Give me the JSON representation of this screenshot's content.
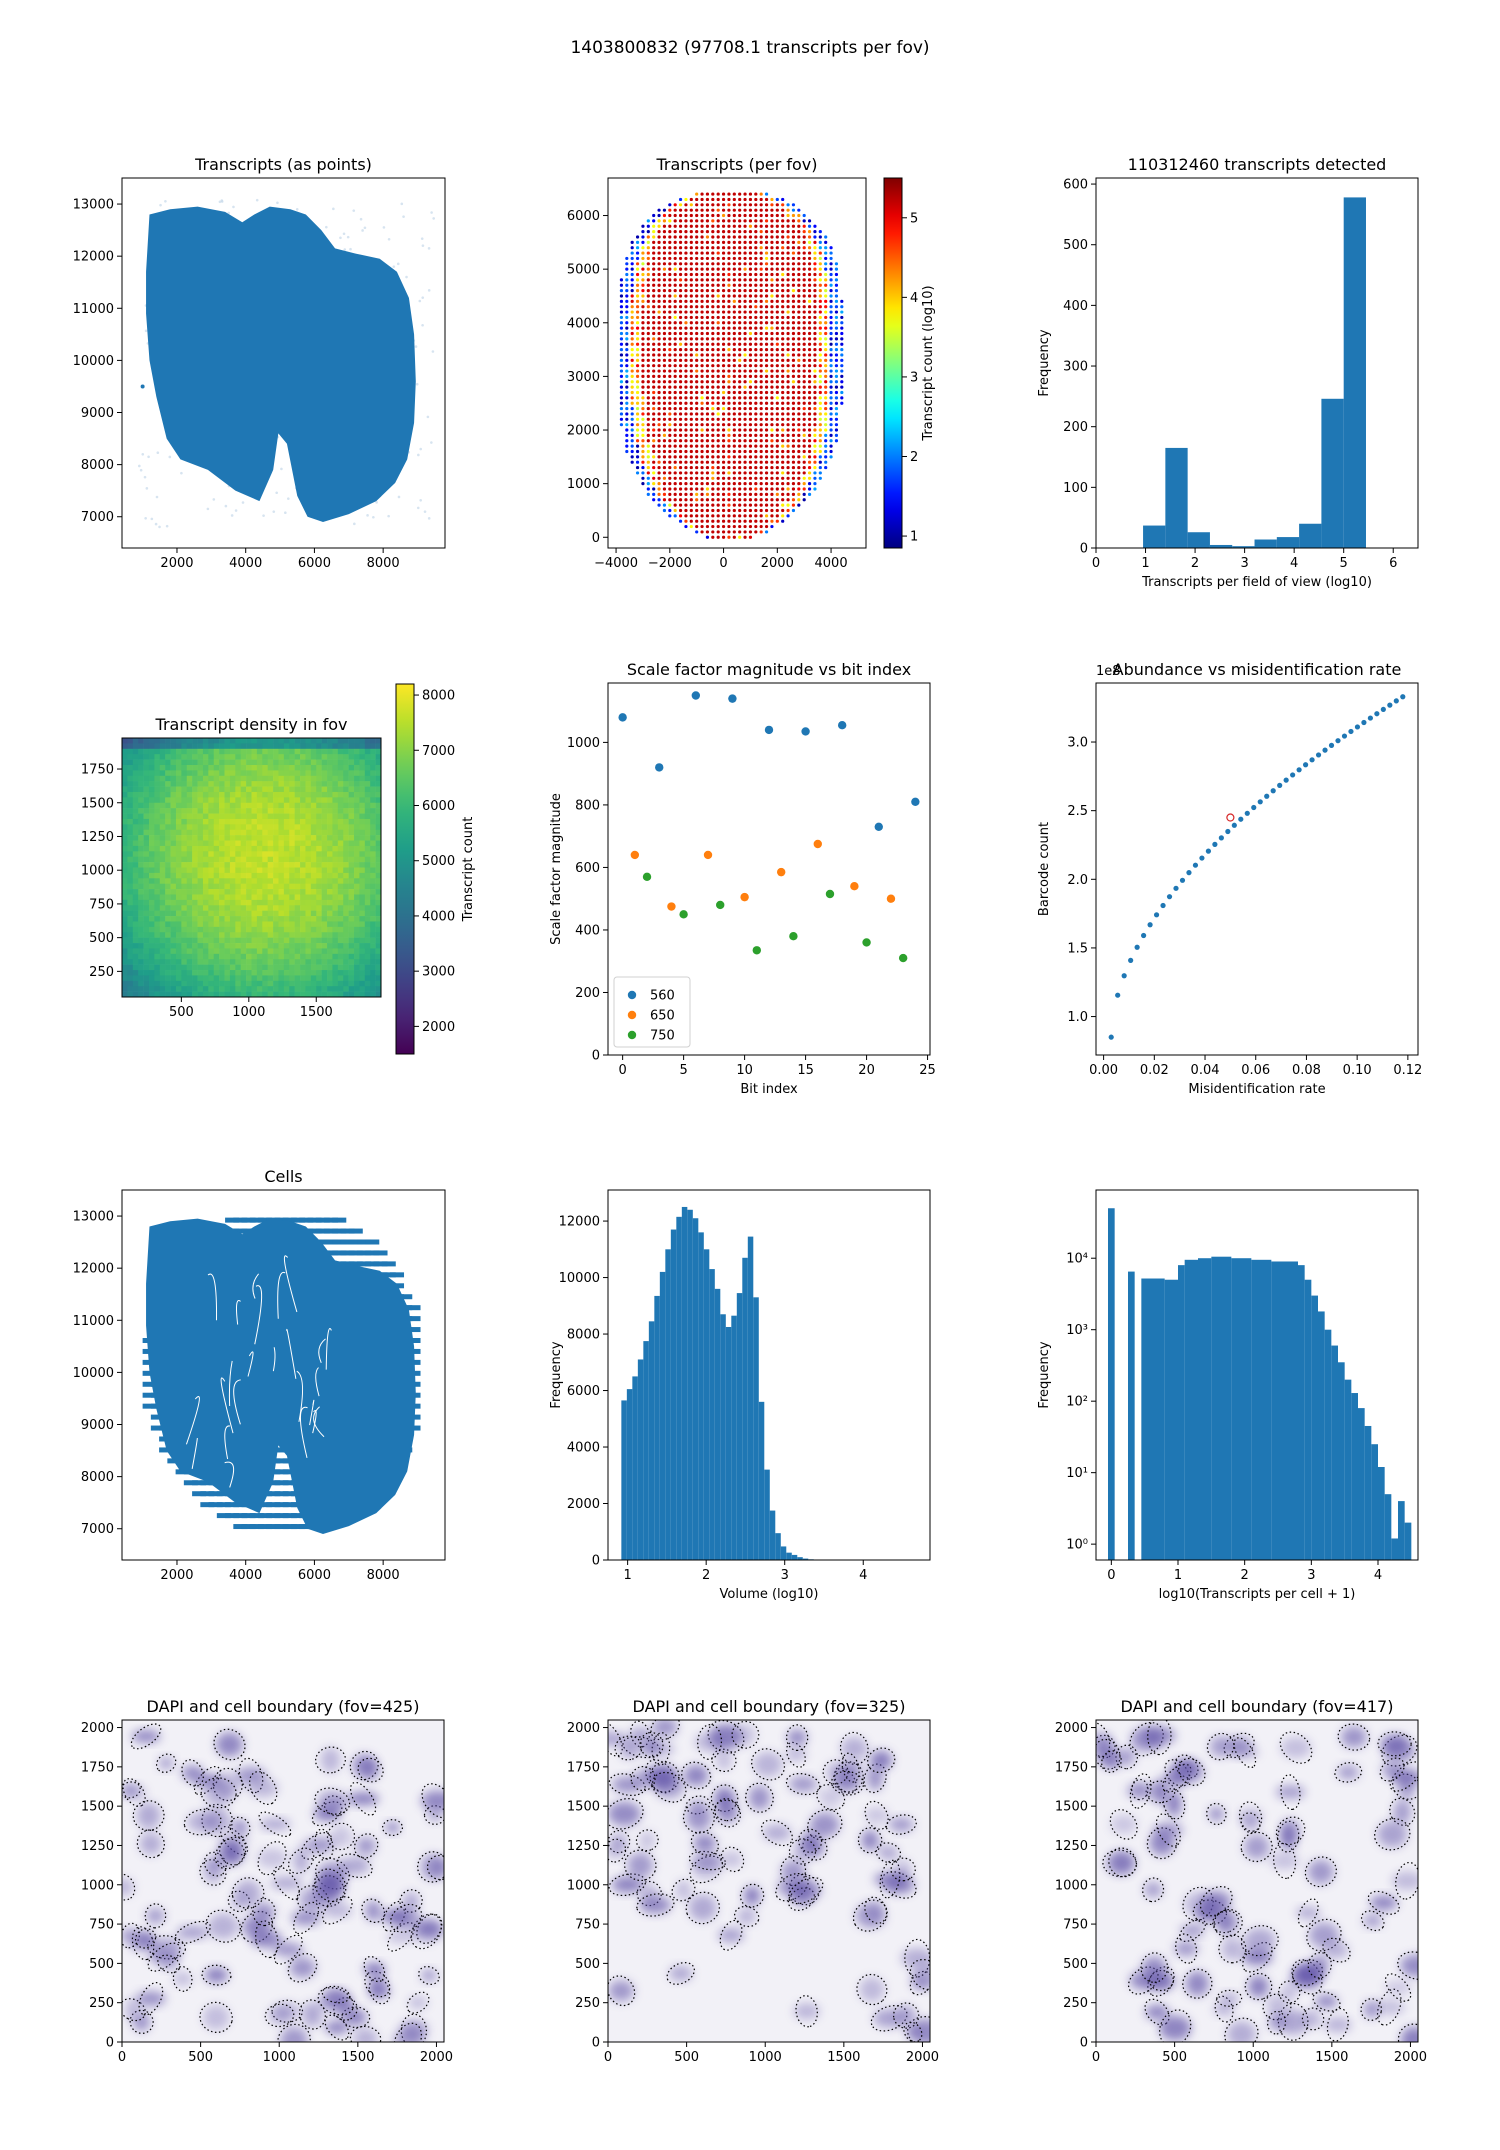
{
  "suptitle": "1403800832 (97708.1 transcripts per fov)",
  "colors": {
    "c0": "#1f77b4",
    "c1": "#ff7f0e",
    "c2": "#2ca02c",
    "dapi": "#5b4ea6"
  },
  "chart_data": [
    {
      "id": "p0",
      "type": "scatter",
      "title": "Transcripts (as points)",
      "xlabel": "",
      "ylabel": "",
      "xlim": [
        400,
        9800
      ],
      "ylim": [
        6400,
        13500
      ],
      "xticks": [
        2000,
        4000,
        6000,
        8000
      ],
      "yticks": [
        7000,
        8000,
        9000,
        10000,
        11000,
        12000,
        13000
      ],
      "outline": [
        [
          1200,
          12800
        ],
        [
          1800,
          12900
        ],
        [
          2600,
          12950
        ],
        [
          3400,
          12850
        ],
        [
          3900,
          12650
        ],
        [
          4250,
          12800
        ],
        [
          4700,
          12950
        ],
        [
          5300,
          12900
        ],
        [
          5750,
          12800
        ],
        [
          6200,
          12500
        ],
        [
          6600,
          12150
        ],
        [
          7200,
          12050
        ],
        [
          7900,
          11950
        ],
        [
          8400,
          11700
        ],
        [
          8750,
          11200
        ],
        [
          8900,
          10500
        ],
        [
          8950,
          9600
        ],
        [
          8900,
          8800
        ],
        [
          8700,
          8100
        ],
        [
          8350,
          7650
        ],
        [
          7800,
          7300
        ],
        [
          7000,
          7050
        ],
        [
          6250,
          6900
        ],
        [
          5800,
          7000
        ],
        [
          5500,
          7400
        ],
        [
          5200,
          8400
        ],
        [
          4950,
          8600
        ],
        [
          4800,
          7900
        ],
        [
          4400,
          7300
        ],
        [
          3700,
          7500
        ],
        [
          2900,
          7900
        ],
        [
          2100,
          8100
        ],
        [
          1700,
          8500
        ],
        [
          1400,
          9300
        ],
        [
          1200,
          10000
        ],
        [
          1100,
          10900
        ],
        [
          1100,
          11700
        ]
      ]
    },
    {
      "id": "p1",
      "type": "scatter",
      "title": "Transcripts (per fov)",
      "xlabel": "",
      "ylabel": "",
      "xlim": [
        -4300,
        5300
      ],
      "ylim": [
        -200,
        6700
      ],
      "xticks": [
        -4000,
        -2000,
        0,
        2000,
        4000
      ],
      "yticks": [
        0,
        1000,
        2000,
        3000,
        4000,
        5000,
        6000
      ],
      "colorbar": {
        "label": "Transcript count (log10)",
        "min": 0.85,
        "max": 5.5,
        "ticks": [
          1,
          2,
          3,
          4,
          5
        ],
        "colormap": "jet"
      },
      "grid_spacing": [
        200,
        100
      ]
    },
    {
      "id": "p2",
      "type": "bar",
      "title": "110312460 transcripts detected",
      "xlabel": "Transcripts per field of view (log10)",
      "ylabel": "Frequency",
      "xlim": [
        0,
        6.5
      ],
      "ylim": [
        0,
        610
      ],
      "xticks": [
        0,
        1,
        2,
        3,
        4,
        5,
        6
      ],
      "yticks": [
        0,
        100,
        200,
        300,
        400,
        500,
        600
      ],
      "bins": [
        [
          0.95,
          1.4,
          37
        ],
        [
          1.4,
          1.85,
          165
        ],
        [
          1.85,
          2.3,
          26
        ],
        [
          2.3,
          2.75,
          5
        ],
        [
          2.75,
          3.2,
          3
        ],
        [
          3.2,
          3.65,
          14
        ],
        [
          3.65,
          4.1,
          18
        ],
        [
          4.1,
          4.55,
          40
        ],
        [
          4.55,
          5.0,
          246
        ],
        [
          5.0,
          5.45,
          578
        ]
      ]
    },
    {
      "id": "p3",
      "type": "heatmap",
      "title": "Transcript density in fov",
      "xlabel": "",
      "ylabel": "",
      "xlim": [
        60,
        1980
      ],
      "ylim": [
        60,
        1980
      ],
      "xticks": [
        500,
        1000,
        1500
      ],
      "yticks": [
        250,
        500,
        750,
        1000,
        1250,
        1500,
        1750
      ],
      "colorbar": {
        "label": "Transcript count",
        "min": 1500,
        "max": 8200,
        "ticks": [
          2000,
          3000,
          4000,
          5000,
          6000,
          7000,
          8000
        ],
        "colormap": "viridis"
      }
    },
    {
      "id": "p4",
      "type": "scatter",
      "title": "Scale factor magnitude vs bit index",
      "xlabel": "Bit index",
      "ylabel": "Scale factor magnitude",
      "xlim": [
        -1.2,
        25.2
      ],
      "ylim": [
        0,
        1190
      ],
      "xticks": [
        0,
        5,
        10,
        15,
        20,
        25
      ],
      "yticks": [
        0,
        200,
        400,
        600,
        800,
        1000
      ],
      "legend": "lower-left",
      "series": [
        {
          "name": "560",
          "x": [
            0,
            3,
            6,
            9,
            12,
            15,
            18,
            21,
            24
          ],
          "y": [
            1080,
            920,
            1150,
            1140,
            1040,
            1035,
            1055,
            730,
            810
          ]
        },
        {
          "name": "650",
          "x": [
            1,
            4,
            7,
            10,
            13,
            16,
            19,
            22
          ],
          "y": [
            640,
            475,
            640,
            505,
            585,
            675,
            540,
            500
          ]
        },
        {
          "name": "750",
          "x": [
            2,
            5,
            8,
            11,
            14,
            17,
            20,
            23
          ],
          "y": [
            570,
            450,
            480,
            335,
            380,
            515,
            360,
            310
          ]
        }
      ]
    },
    {
      "id": "p5",
      "type": "scatter",
      "title": "Abundance vs misidentification rate",
      "xlabel": "Misidentification rate",
      "ylabel": "Barcode count",
      "offset_label": "1e8",
      "xlim": [
        -0.003,
        0.124
      ],
      "ylim": [
        0.72,
        3.43
      ],
      "xticks": [
        0.0,
        0.02,
        0.04,
        0.06,
        0.08,
        0.1,
        0.12
      ],
      "yticks": [
        1.0,
        1.5,
        2.0,
        2.5,
        3.0
      ],
      "xtick_labels": [
        "0.00",
        "0.02",
        "0.04",
        "0.06",
        "0.08",
        "0.10",
        "0.12"
      ],
      "ytick_labels": [
        "1.0",
        "1.5",
        "2.0",
        "2.5",
        "3.0"
      ],
      "highlight": [
        0.05,
        2.45
      ],
      "curve": {
        "x_start": 0.003,
        "x_end": 0.118,
        "n": 46,
        "a": 0.85,
        "b": 2.48
      }
    },
    {
      "id": "p6",
      "type": "scatter",
      "title": "Cells",
      "xlabel": "",
      "ylabel": "",
      "xlim": [
        400,
        9800
      ],
      "ylim": [
        6400,
        13500
      ],
      "xticks": [
        2000,
        4000,
        6000,
        8000
      ],
      "yticks": [
        7000,
        8000,
        9000,
        10000,
        11000,
        12000,
        13000
      ]
    },
    {
      "id": "p7",
      "type": "bar",
      "title": "",
      "xlabel": "Volume (log10)",
      "ylabel": "Frequency",
      "xlim": [
        0.75,
        4.85
      ],
      "ylim": [
        0,
        13100
      ],
      "xticks": [
        1,
        2,
        3,
        4
      ],
      "yticks": [
        0,
        2000,
        4000,
        6000,
        8000,
        10000,
        12000
      ],
      "bin_start": 0.92,
      "bin_width": 0.07,
      "counts": [
        5650,
        6050,
        6500,
        7100,
        7750,
        8450,
        9350,
        10200,
        11000,
        11700,
        12150,
        12500,
        12400,
        12100,
        11600,
        11000,
        10300,
        9600,
        8700,
        8250,
        8650,
        9450,
        10700,
        11450,
        9300,
        5600,
        3200,
        1750,
        950,
        480,
        260,
        180,
        100,
        50,
        25,
        12,
        6,
        3
      ]
    },
    {
      "id": "p8",
      "type": "bar",
      "title": "",
      "xlabel": "log10(Transcripts per cell + 1)",
      "ylabel": "Frequency",
      "yscale": "log",
      "xlim": [
        -0.23,
        4.6
      ],
      "ylim": [
        0.6,
        90000
      ],
      "xticks": [
        0,
        1,
        2,
        3,
        4
      ],
      "yticks": [
        1,
        10,
        100,
        1000,
        10000
      ],
      "ytick_labels": [
        "10⁰",
        "10¹",
        "10²",
        "10³",
        "10⁴"
      ],
      "bins": [
        [
          -0.05,
          0.05,
          50000
        ],
        [
          0.25,
          0.35,
          6500
        ],
        [
          0.45,
          0.8,
          5200
        ],
        [
          0.8,
          1.0,
          5000
        ],
        [
          1.0,
          1.1,
          8000
        ],
        [
          1.1,
          1.3,
          9500
        ],
        [
          1.3,
          1.5,
          10000
        ],
        [
          1.5,
          1.8,
          10500
        ],
        [
          1.8,
          2.1,
          10000
        ],
        [
          2.1,
          2.4,
          9500
        ],
        [
          2.4,
          2.8,
          9000
        ],
        [
          2.8,
          2.9,
          8000
        ],
        [
          2.9,
          3.0,
          5000
        ],
        [
          3.0,
          3.1,
          3000
        ],
        [
          3.1,
          3.2,
          1800
        ],
        [
          3.2,
          3.3,
          1000
        ],
        [
          3.3,
          3.4,
          600
        ],
        [
          3.4,
          3.5,
          350
        ],
        [
          3.5,
          3.6,
          200
        ],
        [
          3.6,
          3.7,
          130
        ],
        [
          3.7,
          3.8,
          80
        ],
        [
          3.8,
          3.9,
          45
        ],
        [
          3.9,
          4.0,
          25
        ],
        [
          4.0,
          4.1,
          12
        ],
        [
          4.1,
          4.2,
          5
        ],
        [
          4.2,
          4.3,
          1.2
        ],
        [
          4.3,
          4.4,
          4
        ],
        [
          4.4,
          4.5,
          2
        ]
      ]
    },
    {
      "id": "p9",
      "type": "heatmap",
      "title": "DAPI and cell boundary (fov=425)",
      "xlabel": "",
      "ylabel": "",
      "xlim": [
        0,
        2048
      ],
      "ylim": [
        0,
        2048
      ],
      "xticks": [
        0,
        500,
        1000,
        1500,
        2000
      ],
      "yticks": [
        0,
        250,
        500,
        750,
        1000,
        1250,
        1500,
        1750,
        2000
      ],
      "seed": 425,
      "cells": 95,
      "gap_region": null
    },
    {
      "id": "p10",
      "type": "heatmap",
      "title": "DAPI and cell boundary (fov=325)",
      "xlabel": "",
      "ylabel": "",
      "xlim": [
        0,
        2048
      ],
      "ylim": [
        0,
        2048
      ],
      "xticks": [
        0,
        500,
        1000,
        1500,
        2000
      ],
      "yticks": [
        0,
        250,
        500,
        750,
        1000,
        1250,
        1500,
        1750,
        2000
      ],
      "seed": 325,
      "cells": 110,
      "gap_region": [
        350,
        1600,
        0,
        900
      ]
    },
    {
      "id": "p11",
      "type": "heatmap",
      "title": "DAPI and cell boundary (fov=417)",
      "xlabel": "",
      "ylabel": "",
      "xlim": [
        0,
        2048
      ],
      "ylim": [
        0,
        2048
      ],
      "xticks": [
        0,
        500,
        1000,
        1500,
        2000
      ],
      "yticks": [
        0,
        250,
        500,
        750,
        1000,
        1250,
        1500,
        1750,
        2000
      ],
      "seed": 417,
      "cells": 85,
      "gap_region": null
    }
  ]
}
